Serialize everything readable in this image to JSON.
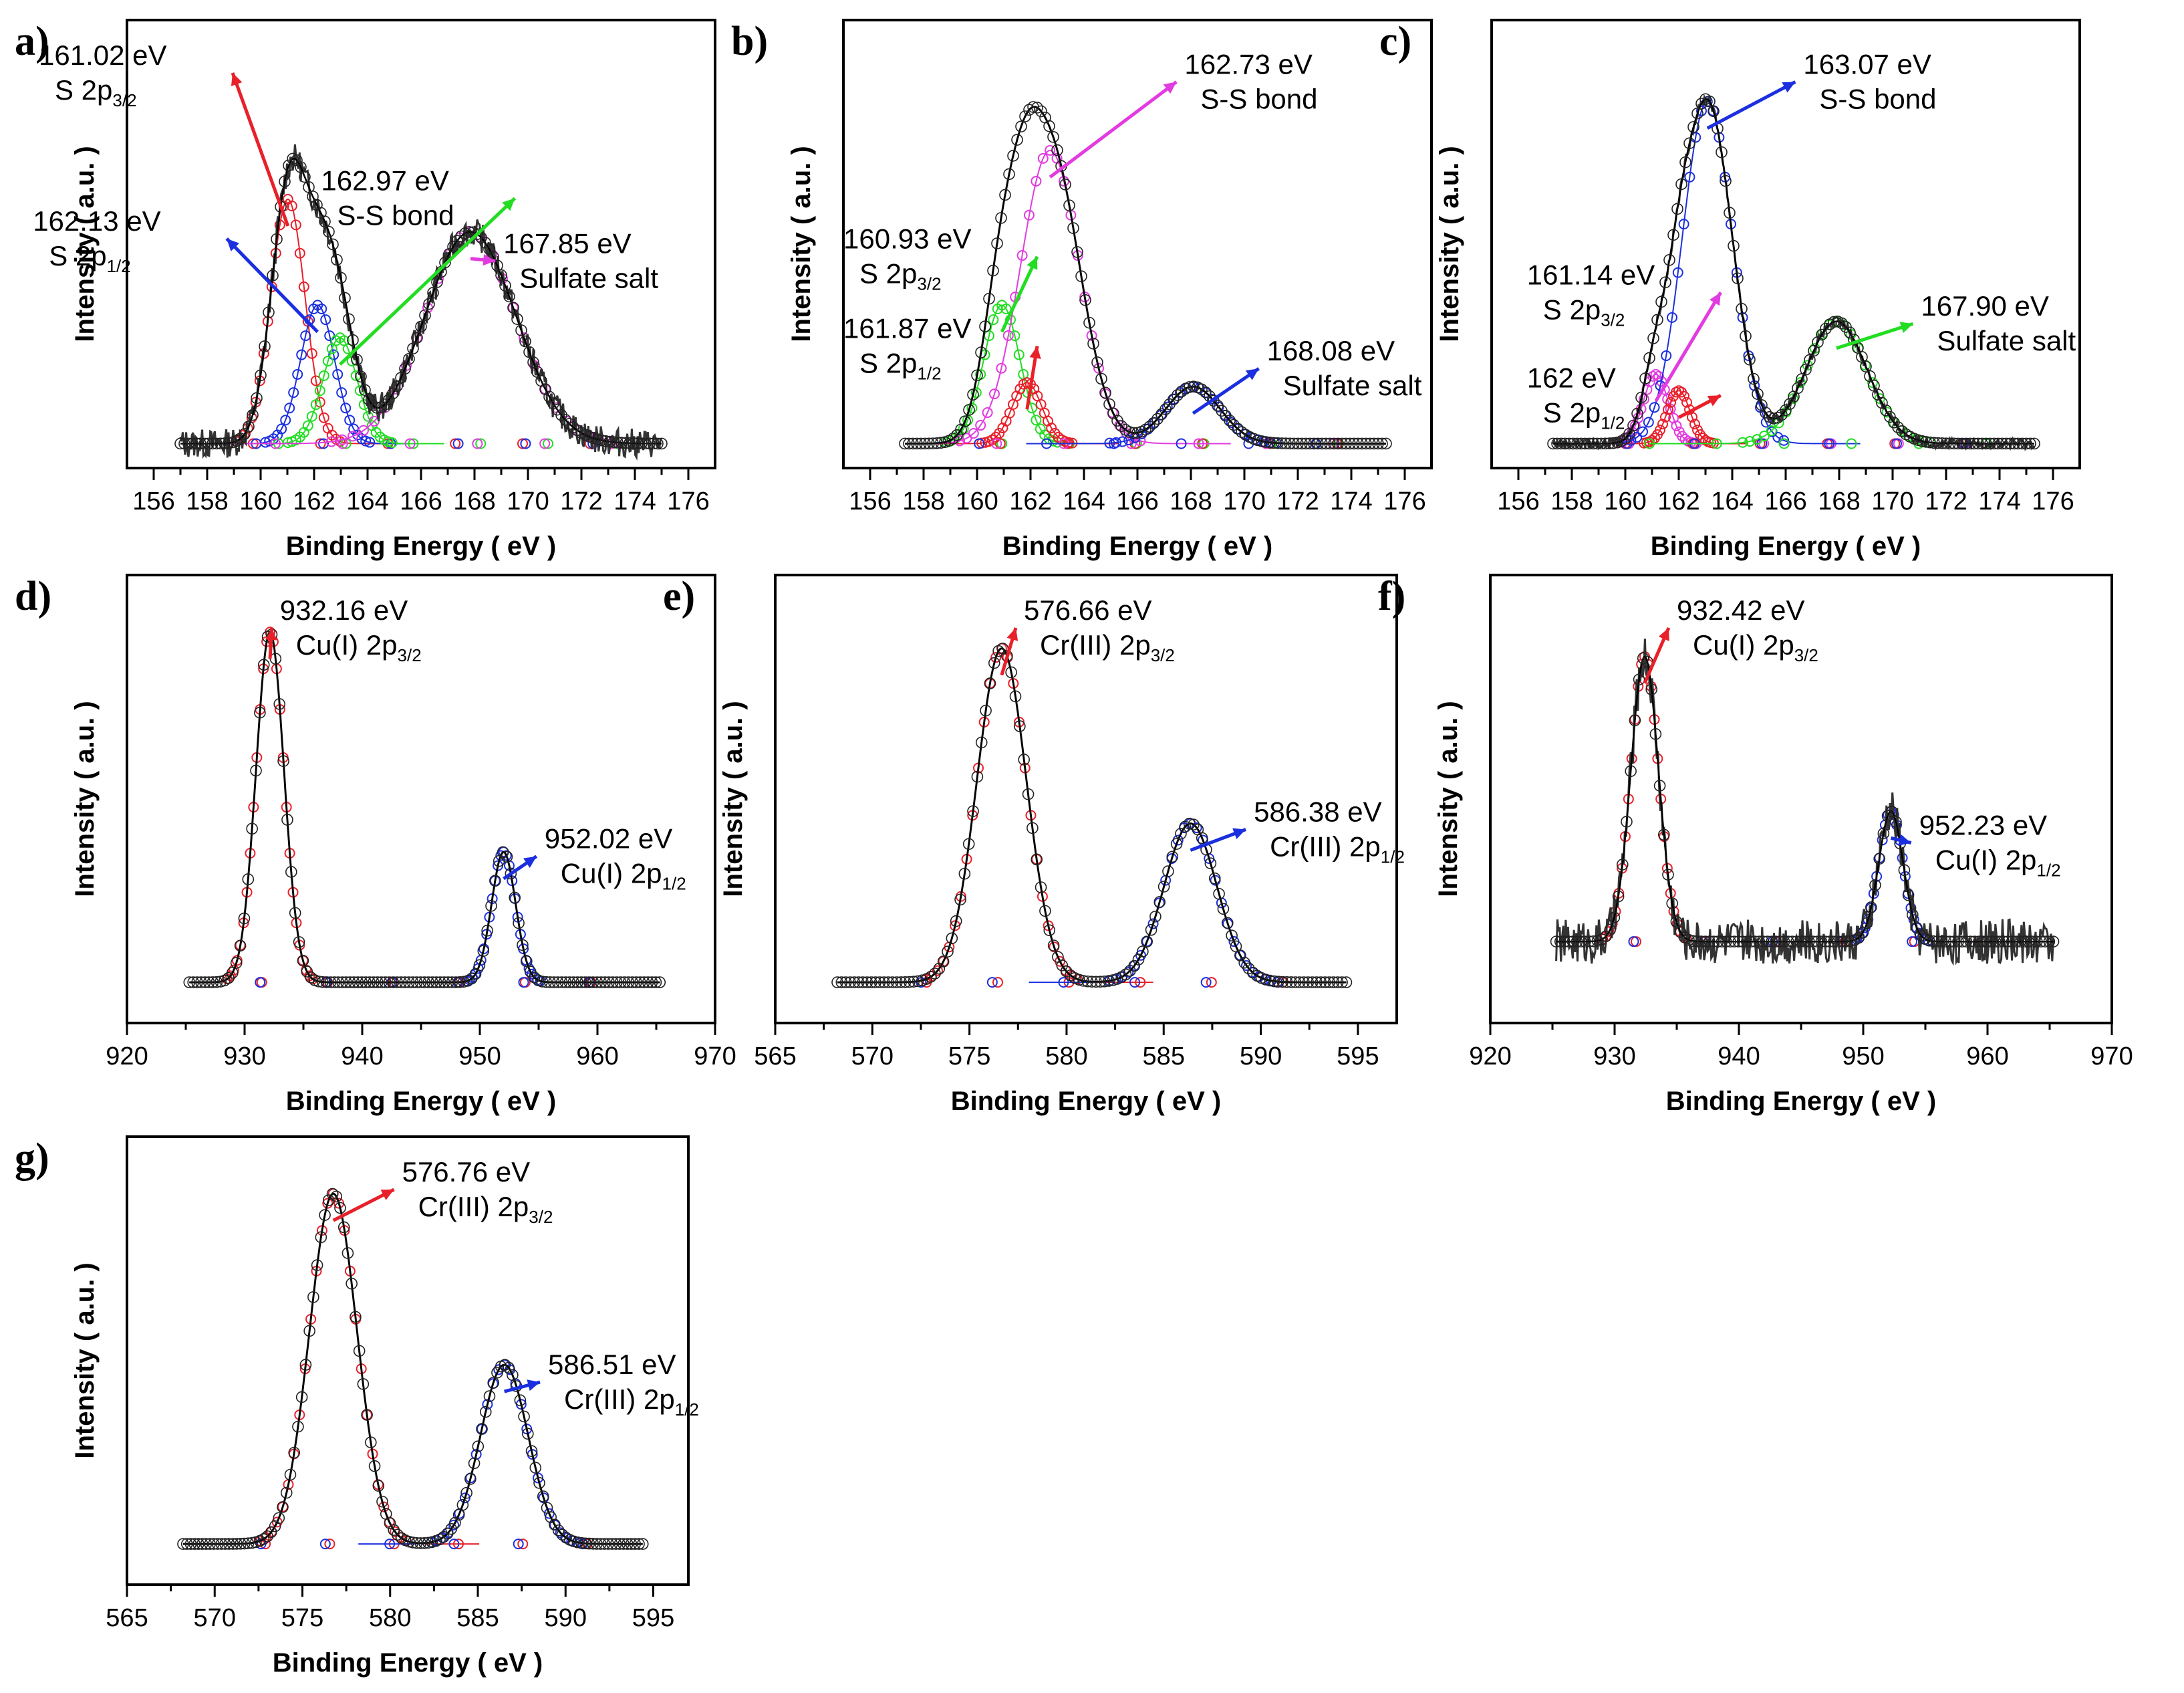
{
  "colors": {
    "raw": "#333333",
    "fit": "#000000",
    "red": "#e8202a",
    "blue": "#1b2fe0",
    "green": "#22dd22",
    "magenta": "#e23be0"
  },
  "chart_data": [
    {
      "panel": "a)",
      "type": "line",
      "title": "",
      "xlabel": "Binding Energy ( eV )",
      "ylabel": "Intensity ( a.u. )",
      "xlim": [
        155,
        177
      ],
      "ylim": [
        0,
        1.1
      ],
      "xticks": [
        "156",
        "158",
        "160",
        "162",
        "164",
        "166",
        "168",
        "170",
        "172",
        "174",
        "176"
      ],
      "x_range": [
        157,
        175
      ],
      "baseline": 0.06,
      "noise": 0.012,
      "peaks": [
        {
          "center": 161.02,
          "height": 0.6,
          "fwhm": 1.5,
          "color": "red",
          "label": "161.02 eV",
          "assign": "S 2p",
          "sub": "3/2"
        },
        {
          "center": 162.13,
          "height": 0.34,
          "fwhm": 1.5,
          "color": "blue",
          "label": "162.13 eV",
          "assign": "S 2p",
          "sub": "1/2"
        },
        {
          "center": 162.97,
          "height": 0.26,
          "fwhm": 1.5,
          "color": "green",
          "label": "162.97 eV",
          "assign": "S-S bond",
          "sub": ""
        },
        {
          "center": 167.85,
          "height": 0.52,
          "fwhm": 4.0,
          "color": "magenta",
          "label": "167.85 eV",
          "assign": "Sulfate salt",
          "sub": ""
        }
      ]
    },
    {
      "panel": "b)",
      "type": "line",
      "title": "",
      "xlabel": "Binding Energy ( eV )",
      "ylabel": "Intensity ( a.u. )",
      "xlim": [
        155,
        177
      ],
      "ylim": [
        0,
        1.1
      ],
      "xticks": [
        "156",
        "158",
        "160",
        "162",
        "164",
        "166",
        "168",
        "170",
        "172",
        "174",
        "176"
      ],
      "x_range": [
        157.3,
        175.3
      ],
      "baseline": 0.06,
      "noise": 0.0,
      "peaks": [
        {
          "center": 160.93,
          "height": 0.34,
          "fwhm": 1.6,
          "color": "green",
          "label": "160.93 eV",
          "assign": "S 2p",
          "sub": "3/2"
        },
        {
          "center": 161.87,
          "height": 0.15,
          "fwhm": 1.3,
          "color": "red",
          "label": "161.87 eV",
          "assign": "S 2p",
          "sub": "1/2"
        },
        {
          "center": 162.73,
          "height": 0.72,
          "fwhm": 2.6,
          "color": "magenta",
          "label": "162.73 eV",
          "assign": "S-S bond",
          "sub": ""
        },
        {
          "center": 168.08,
          "height": 0.14,
          "fwhm": 2.4,
          "color": "blue",
          "label": "168.08 eV",
          "assign": "Sulfate salt",
          "sub": ""
        }
      ]
    },
    {
      "panel": "c)",
      "type": "line",
      "title": "",
      "xlabel": "Binding Energy ( eV )",
      "ylabel": "Intensity ( a.u. )",
      "xlim": [
        155,
        177
      ],
      "ylim": [
        0,
        1.1
      ],
      "xticks": [
        "156",
        "158",
        "160",
        "162",
        "164",
        "166",
        "168",
        "170",
        "172",
        "174",
        "176"
      ],
      "x_range": [
        157.3,
        175.3
      ],
      "baseline": 0.06,
      "noise": 0.004,
      "peaks": [
        {
          "center": 161.14,
          "height": 0.17,
          "fwhm": 1.1,
          "color": "magenta",
          "label": "161.14 eV",
          "assign": "S 2p",
          "sub": "3/2"
        },
        {
          "center": 162.0,
          "height": 0.13,
          "fwhm": 1.0,
          "color": "red",
          "label": "162 eV",
          "assign": "S 2p",
          "sub": "1/2"
        },
        {
          "center": 163.07,
          "height": 0.84,
          "fwhm": 2.2,
          "color": "blue",
          "label": "163.07 eV",
          "assign": "S-S bond",
          "sub": ""
        },
        {
          "center": 167.9,
          "height": 0.3,
          "fwhm": 2.7,
          "color": "green",
          "label": "167.90 eV",
          "assign": "Sulfate salt",
          "sub": ""
        }
      ]
    },
    {
      "panel": "d)",
      "type": "line",
      "title": "",
      "xlabel": "Binding Energy ( eV )",
      "ylabel": "Intensity ( a.u. )",
      "xlim": [
        920,
        970
      ],
      "ylim": [
        0,
        1.1
      ],
      "xticks": [
        "920",
        "930",
        "940",
        "950",
        "960",
        "970"
      ],
      "x_range": [
        925.3,
        965.3
      ],
      "baseline": 0.1,
      "noise": 0.0,
      "peaks": [
        {
          "center": 932.16,
          "height": 0.86,
          "fwhm": 2.8,
          "color": "red",
          "label": "932.16 eV",
          "assign": "Cu(I) 2p",
          "sub": "3/2"
        },
        {
          "center": 952.02,
          "height": 0.32,
          "fwhm": 2.4,
          "color": "blue",
          "label": "952.02 eV",
          "assign": "Cu(I) 2p",
          "sub": "1/2"
        }
      ]
    },
    {
      "panel": "e)",
      "type": "line",
      "title": "",
      "xlabel": "Binding Energy ( eV )",
      "ylabel": "Intensity ( a.u. )",
      "xlim": [
        565,
        597
      ],
      "ylim": [
        0,
        1.1
      ],
      "xticks": [
        "565",
        "570",
        "575",
        "580",
        "585",
        "590",
        "595"
      ],
      "x_range": [
        568.2,
        594.4
      ],
      "baseline": 0.1,
      "noise": 0.0,
      "peaks": [
        {
          "center": 576.66,
          "height": 0.82,
          "fwhm": 3.0,
          "color": "red",
          "label": "576.66 eV",
          "assign": "Cr(III) 2p",
          "sub": "3/2"
        },
        {
          "center": 586.38,
          "height": 0.39,
          "fwhm": 3.2,
          "color": "blue",
          "label": "586.38 eV",
          "assign": "Cr(III) 2p",
          "sub": "1/2"
        }
      ]
    },
    {
      "panel": "f)",
      "type": "line",
      "title": "",
      "xlabel": "Binding Energy ( eV )",
      "ylabel": "Intensity ( a.u. )",
      "xlim": [
        920,
        970
      ],
      "ylim": [
        0,
        1.1
      ],
      "xticks": [
        "920",
        "930",
        "940",
        "950",
        "960",
        "970"
      ],
      "x_range": [
        925.3,
        965.3
      ],
      "baseline": 0.2,
      "noise": 0.025,
      "peaks": [
        {
          "center": 932.42,
          "height": 0.7,
          "fwhm": 2.6,
          "color": "red",
          "label": "932.42 eV",
          "assign": "Cu(I) 2p",
          "sub": "3/2"
        },
        {
          "center": 952.23,
          "height": 0.32,
          "fwhm": 2.3,
          "color": "blue",
          "label": "952.23 eV",
          "assign": "Cu(I) 2p",
          "sub": "1/2"
        }
      ]
    },
    {
      "panel": "g)",
      "type": "line",
      "title": "",
      "xlabel": "Binding Energy ( eV )",
      "ylabel": "Intensity ( a.u. )",
      "xlim": [
        565,
        597
      ],
      "ylim": [
        0,
        1.1
      ],
      "xticks": [
        "565",
        "570",
        "575",
        "580",
        "585",
        "590",
        "595"
      ],
      "x_range": [
        568.2,
        594.4
      ],
      "baseline": 0.1,
      "noise": 0.0,
      "peaks": [
        {
          "center": 576.76,
          "height": 0.86,
          "fwhm": 3.2,
          "color": "red",
          "label": "576.76 eV",
          "assign": "Cr(III) 2p",
          "sub": "3/2"
        },
        {
          "center": 586.51,
          "height": 0.44,
          "fwhm": 3.2,
          "color": "blue",
          "label": "586.51 eV",
          "assign": "Cr(III) 2p",
          "sub": "1/2"
        }
      ]
    }
  ]
}
